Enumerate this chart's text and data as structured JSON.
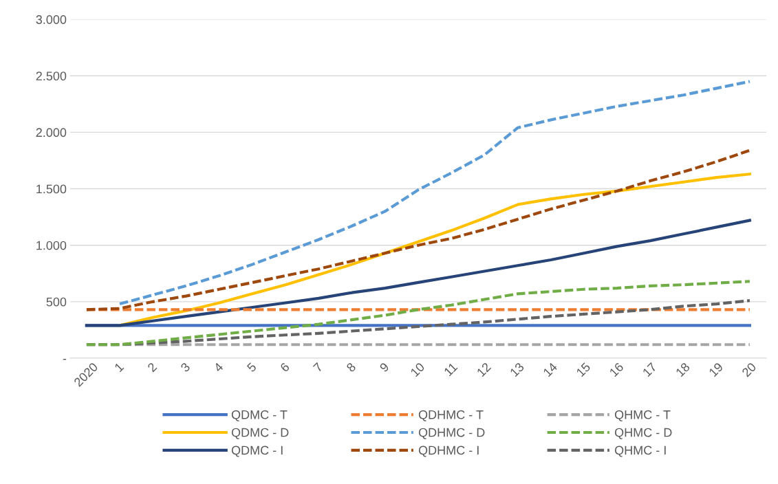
{
  "chart_data": {
    "type": "line",
    "categories": [
      "2020",
      "1",
      "2",
      "3",
      "4",
      "5",
      "6",
      "7",
      "8",
      "9",
      "10",
      "11",
      "12",
      "13",
      "14",
      "15",
      "16",
      "17",
      "18",
      "19",
      "20"
    ],
    "series": [
      {
        "name": "QDMC - T",
        "color": "#4472c4",
        "line_style": "solid",
        "values": [
          290,
          290,
          290,
          290,
          290,
          290,
          290,
          290,
          290,
          290,
          290,
          290,
          290,
          290,
          290,
          290,
          290,
          290,
          290,
          290,
          290
        ]
      },
      {
        "name": "QDHMC - T",
        "color": "#ed7d31",
        "line_style": "dashed",
        "values": [
          430,
          430,
          430,
          430,
          430,
          430,
          430,
          430,
          430,
          430,
          430,
          430,
          430,
          430,
          430,
          430,
          430,
          430,
          430,
          430,
          430
        ]
      },
      {
        "name": "QHMC - T",
        "color": "#a5a5a5",
        "line_style": "dashed",
        "values": [
          120,
          120,
          120,
          120,
          120,
          120,
          120,
          120,
          120,
          120,
          120,
          120,
          120,
          120,
          120,
          120,
          120,
          120,
          120,
          120,
          120
        ]
      },
      {
        "name": "QDMC - D",
        "color": "#ffc000",
        "line_style": "solid",
        "values": [
          null,
          290,
          360,
          420,
          490,
          570,
          650,
          740,
          830,
          930,
          1030,
          1130,
          1240,
          1360,
          1410,
          1450,
          1480,
          1520,
          1560,
          1600,
          1630
        ]
      },
      {
        "name": "QDHMC - D",
        "color": "#5b9bd5",
        "line_style": "dashed",
        "values": [
          null,
          480,
          560,
          640,
          730,
          830,
          940,
          1050,
          1170,
          1300,
          1490,
          1640,
          1800,
          2040,
          2110,
          2170,
          2230,
          2280,
          2330,
          2390,
          2450
        ]
      },
      {
        "name": "QHMC - D",
        "color": "#70ad47",
        "line_style": "dashed",
        "values": [
          120,
          120,
          150,
          180,
          210,
          240,
          270,
          300,
          340,
          380,
          430,
          470,
          520,
          570,
          590,
          610,
          620,
          640,
          650,
          665,
          680
        ]
      },
      {
        "name": "QDMC - I",
        "color": "#264478",
        "line_style": "solid",
        "values": [
          290,
          290,
          330,
          370,
          410,
          450,
          490,
          530,
          580,
          620,
          670,
          720,
          770,
          820,
          870,
          930,
          990,
          1040,
          1100,
          1160,
          1220
        ]
      },
      {
        "name": "QDHMC - I",
        "color": "#9e480e",
        "line_style": "dashed",
        "values": [
          430,
          440,
          500,
          550,
          610,
          670,
          730,
          790,
          860,
          930,
          1000,
          1060,
          1140,
          1230,
          1320,
          1400,
          1480,
          1570,
          1650,
          1740,
          1840
        ]
      },
      {
        "name": "QHMC - I",
        "color": "#636363",
        "line_style": "dashed",
        "values": [
          120,
          120,
          135,
          150,
          170,
          190,
          205,
          220,
          240,
          260,
          280,
          300,
          320,
          345,
          370,
          390,
          410,
          430,
          460,
          480,
          510
        ]
      }
    ],
    "ylim": [
      0,
      3000
    ],
    "yticks": [
      {
        "value": 0,
        "label": "-"
      },
      {
        "value": 500,
        "label": "500"
      },
      {
        "value": 1000,
        "label": "1.000"
      },
      {
        "value": 1500,
        "label": "1.500"
      },
      {
        "value": 2000,
        "label": "2.000"
      },
      {
        "value": 2500,
        "label": "2.500"
      },
      {
        "value": 3000,
        "label": "3.000"
      }
    ],
    "grid": "y",
    "legend": "bottom",
    "marker": "none"
  }
}
